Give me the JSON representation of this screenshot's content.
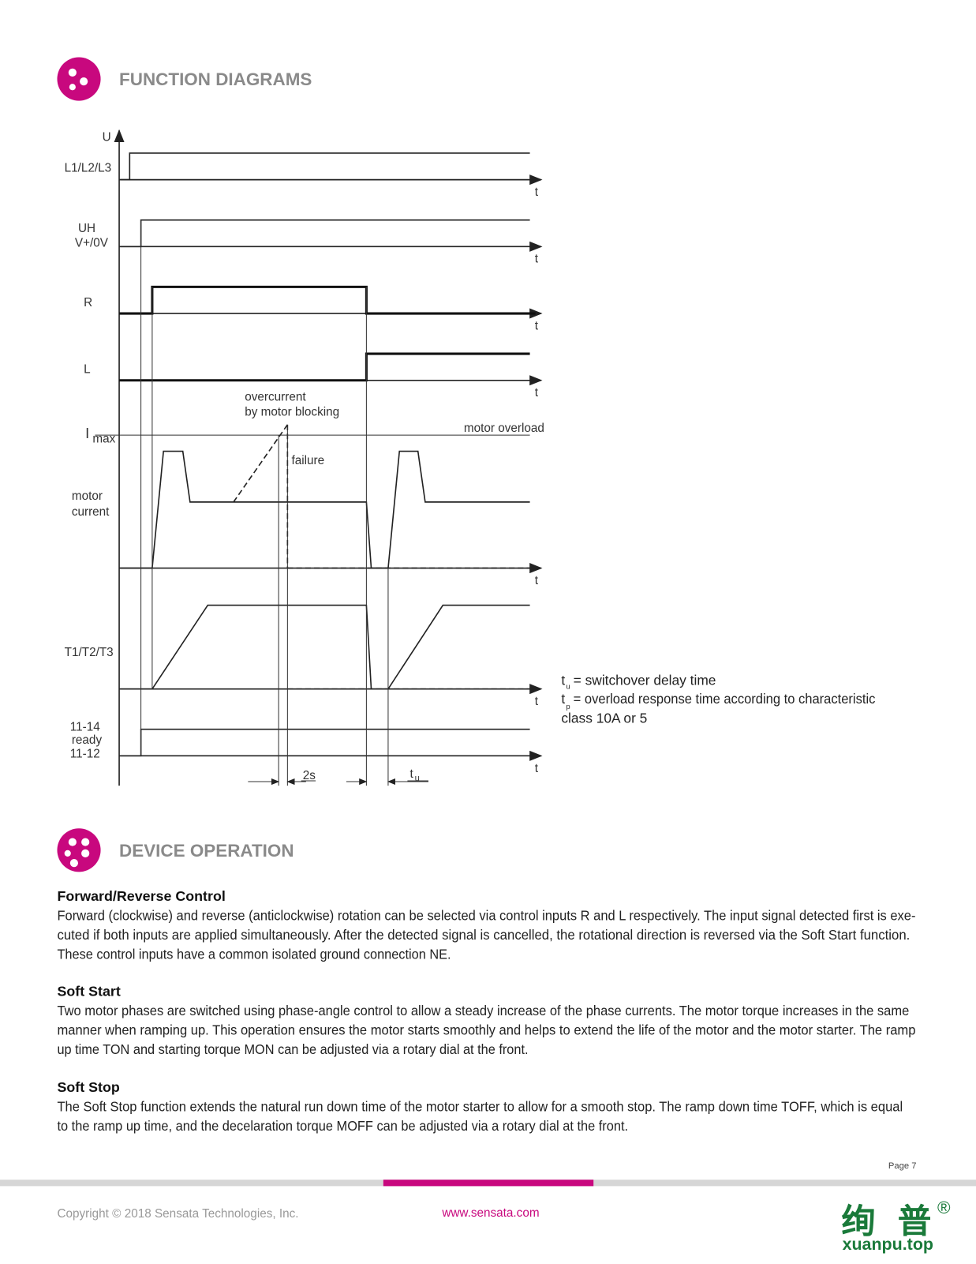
{
  "sections": [
    {
      "title": "FUNCTION DIAGRAMS"
    },
    {
      "title": "DEVICE OPERATION"
    }
  ],
  "diagram": {
    "axis_label": "U",
    "time_label": "t",
    "signals": [
      "L1/L2/L3",
      "UH",
      "V+/0V",
      "R",
      "L",
      "I",
      "max",
      "motor",
      "current",
      "T1/T2/T3",
      "11-14",
      "ready",
      "11-12"
    ],
    "annotations": [
      "overcurrent",
      "by motor blocking",
      "failure",
      "motor overload",
      "2s",
      "t",
      "u"
    ],
    "legend": {
      "tu_symbol": "t",
      "tu_sub": "u",
      "tu_text": "= switchover delay time",
      "tp_symbol": "t",
      "tp_sub": "p",
      "tp_text": "= overload response time according to characteristic",
      "tp_text2": "class 10A or 5"
    }
  },
  "paragraphs": [
    {
      "heading": "Forward/Reverse Control",
      "lines": [
        "Forward (clockwise) and reverse (anticlockwise) rotation can be selected via control inputs R and L respectively. The input signal detected first is exe-",
        "cuted if both inputs are applied simultaneously. After the detected signal is cancelled, the rotational direction is reversed via the Soft Start function.",
        "These control inputs have a common isolated ground connection NE."
      ]
    },
    {
      "heading": "Soft Start",
      "lines": [
        "Two motor phases are switched using phase-angle control to allow a steady increase of the phase currents. The motor torque increases in the same",
        "manner when ramping up. This operation ensures the motor starts smoothly and helps to extend the life of the motor and the motor starter. The ramp",
        "up time TON and starting torque MON can be adjusted via a rotary dial at the front."
      ]
    },
    {
      "heading": "Soft Stop",
      "lines": [
        "The Soft Stop function extends the natural run down time of the motor starter to allow for a smooth stop. The ramp down time TOFF, which is equal",
        "to the ramp up time, and the decelaration torque MOFF can be adjusted via a rotary dial at the front."
      ]
    }
  ],
  "footer": {
    "page": "Page 7",
    "copyright": "Copyright © 2018 Sensata Technologies, Inc.",
    "url": "www.sensata.com",
    "watermark": "绚 普",
    "watermark_mark": "®",
    "watermark_url": "xuanpu.top"
  }
}
